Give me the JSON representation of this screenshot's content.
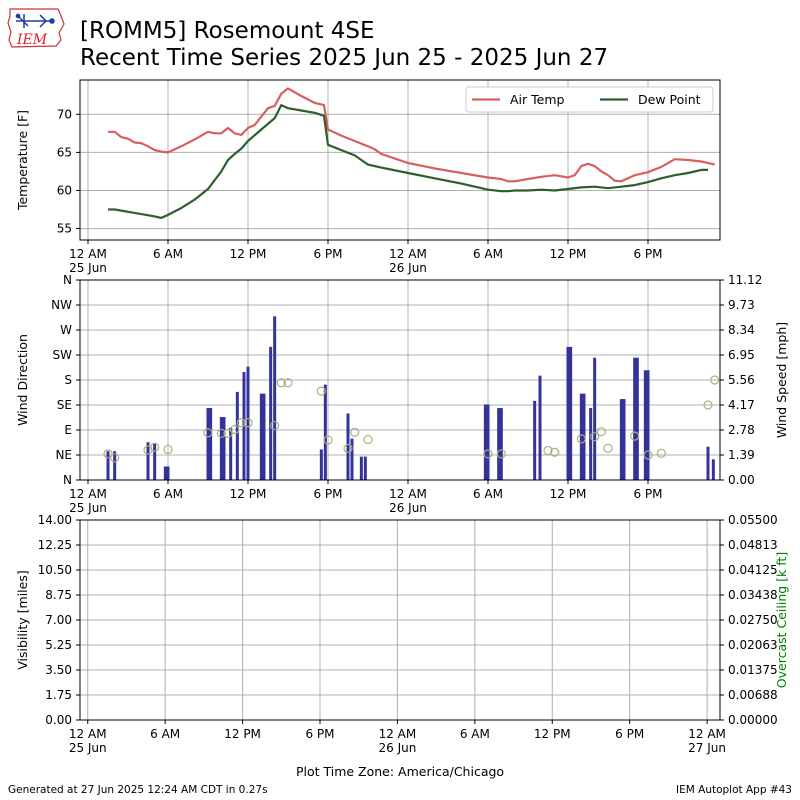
{
  "header": {
    "logo_text": "IEM",
    "title_line1": "[ROMM5] Rosemount 4SE",
    "title_line2": "Recent Time Series 2025 Jun 25 - 2025 Jun 27"
  },
  "footer": {
    "generated": "Generated at 27 Jun 2025 12:24 AM CDT in 0.27s",
    "app": "IEM Autoplot App #43"
  },
  "colors": {
    "air_temp": "#d95f5f",
    "dew_point": "#2e5e2e",
    "wind_bar": "#33339b",
    "wind_dir_marker": "#a8b07a",
    "ceiling_label": "#008000",
    "grid": "#b0b0b0"
  },
  "chart_data": [
    {
      "type": "line",
      "ylabel": "Temperature [F]",
      "ylim": [
        53.5,
        74.5
      ],
      "yticks": [
        55,
        60,
        65,
        70
      ],
      "x_unit": "hours since 2025-06-25 00:00 (America/Chicago)",
      "xlim": [
        -0.6,
        47.4
      ],
      "xticks": [
        {
          "h": 0,
          "label": "12 AM",
          "sub": "25 Jun"
        },
        {
          "h": 6,
          "label": "6 AM"
        },
        {
          "h": 12,
          "label": "12 PM"
        },
        {
          "h": 18,
          "label": "6 PM"
        },
        {
          "h": 24,
          "label": "12 AM",
          "sub": "26 Jun"
        },
        {
          "h": 30,
          "label": "6 AM"
        },
        {
          "h": 36,
          "label": "12 PM"
        },
        {
          "h": 42,
          "label": "6 PM"
        }
      ],
      "grid": true,
      "legend_position": "upper-right",
      "series": [
        {
          "name": "Air Temp",
          "x": [
            1.5,
            2.0,
            2.5,
            3.0,
            3.5,
            4.0,
            4.5,
            5.0,
            5.5,
            6.0,
            7.0,
            8.0,
            9.0,
            9.5,
            10.0,
            10.5,
            11.0,
            11.5,
            12.0,
            12.5,
            13.0,
            13.5,
            14.0,
            14.5,
            15.0,
            16.0,
            17.0,
            17.7,
            18.0,
            19.0,
            20.0,
            21.0,
            21.5,
            22.0,
            24.0,
            26.0,
            28.0,
            30.0,
            31.0,
            31.5,
            32.0,
            33.0,
            34.0,
            35.0,
            36.0,
            36.5,
            37.0,
            37.5,
            38.0,
            38.5,
            39.0,
            39.5,
            40.0,
            41.0,
            42.0,
            43.0,
            44.0,
            45.0,
            46.0,
            47.0
          ],
          "values": [
            67.7,
            67.7,
            67.0,
            66.8,
            66.3,
            66.2,
            65.8,
            65.3,
            65.1,
            65.0,
            65.8,
            66.7,
            67.7,
            67.5,
            67.5,
            68.2,
            67.5,
            67.3,
            68.2,
            68.6,
            69.7,
            70.8,
            71.1,
            72.7,
            73.4,
            72.4,
            71.5,
            71.2,
            68.0,
            67.2,
            66.5,
            65.8,
            65.4,
            64.8,
            63.6,
            62.9,
            62.3,
            61.7,
            61.5,
            61.2,
            61.2,
            61.5,
            61.8,
            62.0,
            61.7,
            62.0,
            63.2,
            63.5,
            63.2,
            62.5,
            62.0,
            61.3,
            61.2,
            62.0,
            62.4,
            63.1,
            64.1,
            64.0,
            63.8,
            63.4
          ]
        },
        {
          "name": "Dew Point",
          "x": [
            1.5,
            2.0,
            3.0,
            4.0,
            5.0,
            5.5,
            6.0,
            7.0,
            8.0,
            9.0,
            10.0,
            10.5,
            11.0,
            11.5,
            12.0,
            13.0,
            14.0,
            14.5,
            15.0,
            16.0,
            17.0,
            17.7,
            18.0,
            19.0,
            20.0,
            21.0,
            22.0,
            24.0,
            26.0,
            28.0,
            30.0,
            31.0,
            31.5,
            32.0,
            33.0,
            34.0,
            35.0,
            36.0,
            37.0,
            38.0,
            39.0,
            40.0,
            41.0,
            42.0,
            43.0,
            44.0,
            45.0,
            46.0,
            46.5
          ],
          "values": [
            57.5,
            57.5,
            57.2,
            56.9,
            56.6,
            56.4,
            56.8,
            57.7,
            58.8,
            60.2,
            62.5,
            64.0,
            64.8,
            65.5,
            66.5,
            68.0,
            69.5,
            71.2,
            70.8,
            70.5,
            70.2,
            69.8,
            66.0,
            65.3,
            64.6,
            63.4,
            63.0,
            62.3,
            61.6,
            60.9,
            60.1,
            59.9,
            59.9,
            60.0,
            60.0,
            60.1,
            60.0,
            60.2,
            60.4,
            60.5,
            60.3,
            60.5,
            60.7,
            61.1,
            61.6,
            62.0,
            62.3,
            62.7,
            62.7
          ]
        }
      ]
    },
    {
      "type": "bar",
      "ylabel": "Wind Direction",
      "y2label": "Wind Speed [mph]",
      "ylim": [
        0,
        360
      ],
      "ytick_values": [
        0,
        45,
        90,
        135,
        180,
        225,
        270,
        315,
        360
      ],
      "ytick_labels": [
        "N",
        "NE",
        "E",
        "SE",
        "S",
        "SW",
        "W",
        "NW",
        "N"
      ],
      "y2lim": [
        0,
        11.12
      ],
      "y2ticks": [
        "0.00",
        "1.39",
        "2.78",
        "4.17",
        "5.56",
        "6.95",
        "8.34",
        "9.73",
        "11.12"
      ],
      "x_unit": "hours since 2025-06-25 00:00 (America/Chicago)",
      "xlim": [
        -0.6,
        47.4
      ],
      "xticks": [
        {
          "h": 0,
          "label": "12 AM",
          "sub": "25 Jun"
        },
        {
          "h": 6,
          "label": "6 AM"
        },
        {
          "h": 12,
          "label": "12 PM"
        },
        {
          "h": 18,
          "label": "6 PM"
        },
        {
          "h": 24,
          "label": "12 AM",
          "sub": "26 Jun"
        },
        {
          "h": 30,
          "label": "6 AM"
        },
        {
          "h": 36,
          "label": "12 PM"
        },
        {
          "h": 42,
          "label": "6 PM"
        }
      ],
      "grid": true,
      "series": [
        {
          "name": "Wind Speed [mph]",
          "x": [
            1.5,
            2.0,
            4.5,
            5.0,
            5.8,
            6.0,
            9.0,
            9.2,
            10.0,
            10.2,
            10.7,
            11.2,
            11.7,
            12.0,
            13.0,
            13.2,
            13.7,
            14.0,
            17.5,
            17.8,
            19.5,
            19.8,
            20.5,
            20.8,
            29.8,
            30.0,
            30.8,
            31.0,
            33.5,
            33.9,
            36.0,
            36.2,
            37.0,
            37.2,
            37.7,
            38.0,
            40.0,
            40.2,
            41.0,
            41.2,
            41.8,
            42.0,
            46.5,
            46.9
          ],
          "values": [
            1.6,
            1.6,
            2.1,
            2.0,
            0.75,
            0.75,
            4.0,
            4.0,
            3.5,
            3.5,
            2.9,
            4.9,
            6.0,
            6.3,
            4.8,
            4.8,
            7.4,
            9.1,
            1.7,
            5.3,
            3.7,
            2.3,
            1.3,
            1.3,
            4.2,
            4.2,
            4.0,
            4.0,
            4.4,
            5.8,
            7.4,
            7.4,
            4.8,
            4.8,
            4.0,
            6.8,
            4.5,
            4.5,
            6.8,
            6.8,
            6.1,
            6.1,
            1.85,
            1.15
          ]
        },
        {
          "name": "Wind Direction",
          "x": [
            1.5,
            2.0,
            4.5,
            5.0,
            6.0,
            9.0,
            10.0,
            10.5,
            11.0,
            11.5,
            12.0,
            14.0,
            14.5,
            15.0,
            17.5,
            18.0,
            19.5,
            20.0,
            21.0,
            30.0,
            31.0,
            34.5,
            35.0,
            37.0,
            38.0,
            38.5,
            39.0,
            41.0,
            42.0,
            43.0,
            46.5,
            47.0
          ],
          "values": [
            47,
            40,
            54,
            59,
            55,
            85,
            84,
            84,
            91,
            103,
            103,
            98,
            175,
            175,
            160,
            72,
            57,
            86,
            73,
            47,
            47,
            53,
            50,
            74,
            78,
            87,
            57,
            79,
            45,
            48,
            135,
            180
          ]
        }
      ]
    },
    {
      "type": "line",
      "ylabel": "Visibility [miles]",
      "y2label": "Overcast Ceiling [k ft]",
      "ylim": [
        0,
        14
      ],
      "yticks": [
        "0.00",
        "1.75",
        "3.50",
        "5.25",
        "7.00",
        "8.75",
        "10.50",
        "12.25",
        "14.00"
      ],
      "y2lim": [
        0,
        0.055
      ],
      "y2ticks": [
        "0.00000",
        "0.00688",
        "0.01375",
        "0.02063",
        "0.02750",
        "0.03438",
        "0.04125",
        "0.04813",
        "0.05500"
      ],
      "x_unit": "hours since 2025-06-25 00:00 (America/Chicago)",
      "xlim": [
        -0.6,
        49.0
      ],
      "xlabel": "Plot Time Zone: America/Chicago",
      "xticks": [
        {
          "h": 0,
          "label": "12 AM",
          "sub": "25 Jun"
        },
        {
          "h": 6,
          "label": "6 AM"
        },
        {
          "h": 12,
          "label": "12 PM"
        },
        {
          "h": 18,
          "label": "6 PM"
        },
        {
          "h": 24,
          "label": "12 AM",
          "sub": "26 Jun"
        },
        {
          "h": 30,
          "label": "6 AM"
        },
        {
          "h": 36,
          "label": "12 PM"
        },
        {
          "h": 42,
          "label": "6 PM"
        },
        {
          "h": 48,
          "label": "12 AM",
          "sub": "27 Jun"
        }
      ],
      "grid": true,
      "series": []
    }
  ]
}
